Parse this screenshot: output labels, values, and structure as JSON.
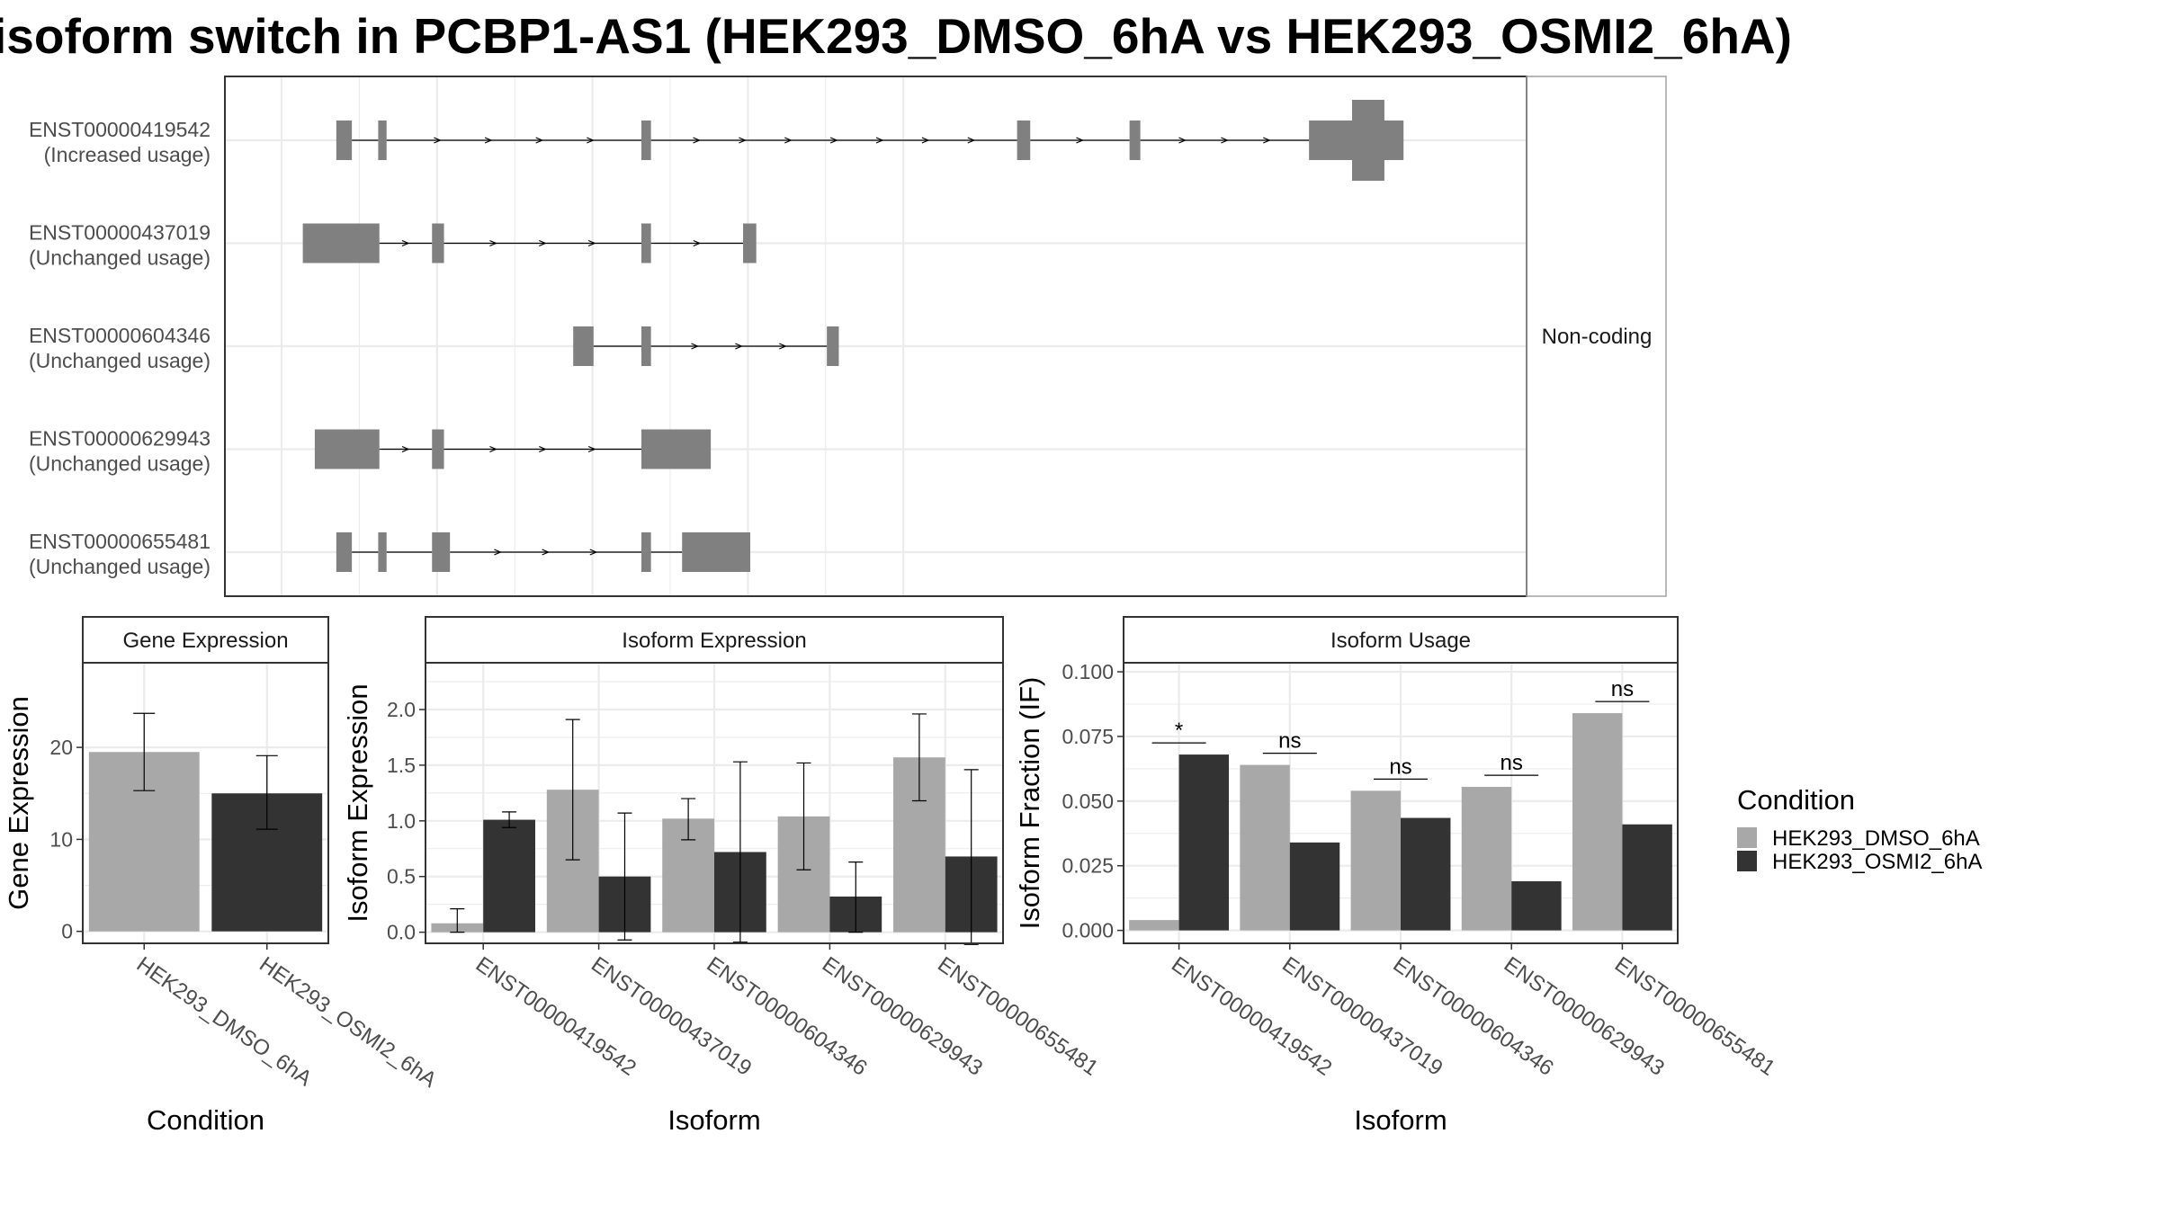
{
  "title": "isoform switch in PCBP1-AS1 (HEK293_DMSO_6hA vs HEK293_OSMI2_6hA)",
  "colors": {
    "dmso": "#a8a8a8",
    "osmi": "#333333",
    "exon": "#808080",
    "intron": "#000000",
    "grid": "#ebebeb",
    "panel_border": "#333333",
    "strip_border": "#a0a0a0",
    "label": "#4d4d4d"
  },
  "chart_data": [
    {
      "type": "gene-structure",
      "strip": "Non-coding",
      "xlim": [
        0,
        1000
      ],
      "transcripts": [
        {
          "id": "ENST00000419542",
          "usage": "(Increased usage)",
          "exons": [
            [
              45,
              58
            ],
            [
              80,
              87
            ],
            [
              300,
              308
            ],
            [
              614,
              625
            ],
            [
              708,
              717
            ],
            [
              858,
              937
            ]
          ],
          "cds": [
            [
              894,
              921
            ]
          ]
        },
        {
          "id": "ENST00000437019",
          "usage": "(Unchanged usage)",
          "exons": [
            [
              17,
              81
            ],
            [
              125,
              135
            ],
            [
              300,
              308
            ],
            [
              385,
              396
            ]
          ]
        },
        {
          "id": "ENST00000604346",
          "usage": "(Unchanged usage)",
          "exons": [
            [
              243,
              260
            ],
            [
              300,
              308
            ],
            [
              455,
              465
            ]
          ]
        },
        {
          "id": "ENST00000629943",
          "usage": "(Unchanged usage)",
          "exons": [
            [
              27,
              81
            ],
            [
              125,
              135
            ],
            [
              300,
              358
            ]
          ]
        },
        {
          "id": "ENST00000655481",
          "usage": "(Unchanged usage)",
          "exons": [
            [
              45,
              58
            ],
            [
              80,
              87
            ],
            [
              125,
              140
            ],
            [
              300,
              308
            ],
            [
              334,
              391
            ]
          ]
        }
      ]
    },
    {
      "type": "bar",
      "strip": "Gene Expression",
      "xlabel": "Condition",
      "ylabel": "Gene Expression",
      "ylim": [
        -1.3,
        29.2
      ],
      "yticks": [
        "0",
        "10",
        "20"
      ],
      "categories": [
        "HEK293_DMSO_6hA",
        "HEK293_OSMI2_6hA"
      ],
      "values": [
        19.5,
        15.0
      ],
      "err": [
        [
          15.3,
          23.7
        ],
        [
          11.1,
          19.1
        ]
      ]
    },
    {
      "type": "bar",
      "strip": "Isoform Expression",
      "xlabel": "Isoform",
      "ylabel": "Isoform Expression",
      "ylim": [
        -0.1,
        2.42
      ],
      "yticks": [
        "0.0",
        "0.5",
        "1.0",
        "1.5",
        "2.0"
      ],
      "categories": [
        "ENST00000419542",
        "ENST00000437019",
        "ENST00000604346",
        "ENST00000629943",
        "ENST00000655481"
      ],
      "series": [
        {
          "name": "HEK293_DMSO_6hA",
          "values": [
            0.08,
            1.28,
            1.02,
            1.04,
            1.57
          ],
          "err": [
            [
              0.0,
              0.21
            ],
            [
              0.65,
              1.91
            ],
            [
              0.83,
              1.2
            ],
            [
              0.56,
              1.52
            ],
            [
              1.18,
              1.96
            ]
          ]
        },
        {
          "name": "HEK293_OSMI2_6hA",
          "values": [
            1.01,
            0.5,
            0.72,
            0.32,
            0.68
          ],
          "err": [
            [
              0.94,
              1.08
            ],
            [
              -0.07,
              1.07
            ],
            [
              -0.09,
              1.53
            ],
            [
              0.0,
              0.63
            ],
            [
              -0.11,
              1.46
            ]
          ]
        }
      ]
    },
    {
      "type": "bar",
      "strip": "Isoform Usage",
      "xlabel": "Isoform",
      "ylabel": "Isoform Fraction (IF)",
      "ylim": [
        -0.005,
        0.1035
      ],
      "yticks": [
        "0.000",
        "0.025",
        "0.050",
        "0.075",
        "0.100"
      ],
      "categories": [
        "ENST00000419542",
        "ENST00000437019",
        "ENST00000604346",
        "ENST00000629943",
        "ENST00000655481"
      ],
      "series": [
        {
          "name": "HEK293_DMSO_6hA",
          "values": [
            0.004,
            0.064,
            0.054,
            0.0555,
            0.084
          ]
        },
        {
          "name": "HEK293_OSMI2_6hA",
          "values": [
            0.068,
            0.034,
            0.0435,
            0.019,
            0.041
          ]
        }
      ],
      "significance": [
        {
          "label": "*",
          "y": 0.0725
        },
        {
          "label": "ns",
          "y": 0.0685
        },
        {
          "label": "ns",
          "y": 0.0585
        },
        {
          "label": "ns",
          "y": 0.06
        },
        {
          "label": "ns",
          "y": 0.0885
        }
      ]
    }
  ],
  "legend": {
    "title": "Condition",
    "items": [
      {
        "label": "HEK293_DMSO_6hA",
        "color": "#a8a8a8"
      },
      {
        "label": "HEK293_OSMI2_6hA",
        "color": "#333333"
      }
    ]
  }
}
